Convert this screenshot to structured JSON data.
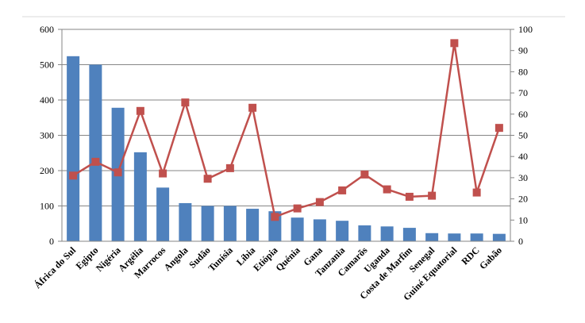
{
  "chart_data": {
    "type": "bar",
    "categories": [
      "África do Sul",
      "Egipto",
      "Nigéria",
      "Argélia",
      "Marrocos",
      "Angola",
      "Sudão",
      "Tunísia",
      "Líbia",
      "Etiópia",
      "Quénia",
      "Gana",
      "Tanzania",
      "Camarõs",
      "Uganda",
      "Costa de Marfim",
      "Senegal",
      "Guiné Equatorial",
      "RDC",
      "Gabão"
    ],
    "series": [
      {
        "kind": "bar",
        "axis": "left",
        "color": "#4f81bd",
        "values": [
          524,
          500,
          378,
          252,
          152,
          108,
          100,
          100,
          92,
          85,
          67,
          62,
          58,
          45,
          42,
          38,
          23,
          22,
          22,
          21
        ]
      },
      {
        "kind": "line",
        "axis": "right",
        "color": "#c0504d",
        "values": [
          31,
          37.5,
          32.5,
          61.5,
          32,
          65.5,
          29.5,
          34.5,
          63,
          11.5,
          15.5,
          18.5,
          24,
          31.5,
          24.5,
          21,
          21.5,
          93.5,
          23,
          53.5
        ]
      }
    ],
    "ylim_left": [
      0,
      600
    ],
    "yticks_left": [
      "0",
      "100",
      "200",
      "300",
      "400",
      "500",
      "600"
    ],
    "ylim_right": [
      0,
      100
    ],
    "yticks_right": [
      "0",
      "10",
      "20",
      "30",
      "40",
      "50",
      "60",
      "70",
      "80",
      "90",
      "100"
    ],
    "grid": true,
    "legend": "none"
  }
}
